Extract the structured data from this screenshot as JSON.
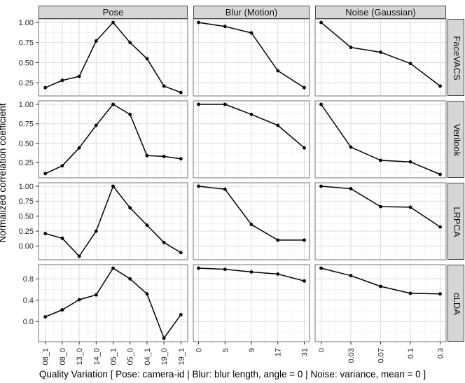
{
  "figure": {
    "y_axis_label": "Normalized correlation coefficient",
    "x_axis_label": "Quality Variation [ Pose: camera-id | Blur: blur length, angle = 0 | Noise: variance, mean = 0 ]"
  },
  "chart_data": {
    "type": "line",
    "grid": true,
    "legend": "none",
    "line_color": "#000000",
    "point_color": "#000000",
    "strip_bg": "#d6d6d6",
    "panel_bg": "#ffffff",
    "major_grid_color": "#dcdcdc",
    "minor_grid_color": "#efefef",
    "panel_border_color": "#8a8a8a",
    "facet_columns": [
      {
        "label": "Pose",
        "categories": [
          "08_1",
          "08_0",
          "13_0",
          "14_0",
          "05_1",
          "05_0",
          "04_1",
          "19_0",
          "19_1"
        ]
      },
      {
        "label": "Blur (Motion)",
        "categories": [
          "0",
          "5",
          "9",
          "17",
          "31"
        ]
      },
      {
        "label": "Noise (Gaussian)",
        "categories": [
          "0",
          "0.03",
          "0.07",
          "0.1",
          "0.3"
        ]
      }
    ],
    "facet_rows": [
      {
        "label": "FaceVACS",
        "ylim": [
          0.087,
          1.044
        ],
        "yticks": [
          {
            "v": 0.25,
            "label": "0.25"
          },
          {
            "v": 0.5,
            "label": "0.50"
          },
          {
            "v": 0.75,
            "label": "0.75"
          },
          {
            "v": 1.0,
            "label": "1.00"
          }
        ]
      },
      {
        "label": "Verilook",
        "ylim": [
          0.055,
          1.045
        ],
        "yticks": [
          {
            "v": 0.25,
            "label": "0.25"
          },
          {
            "v": 0.5,
            "label": "0.50"
          },
          {
            "v": 0.75,
            "label": "0.75"
          },
          {
            "v": 1.0,
            "label": "1.00"
          }
        ]
      },
      {
        "label": "LRPCA",
        "ylim": [
          -0.229,
          1.059
        ],
        "yticks": [
          {
            "v": 0.0,
            "label": "0.00"
          },
          {
            "v": 0.25,
            "label": "0.25"
          },
          {
            "v": 0.5,
            "label": "0.50"
          },
          {
            "v": 0.75,
            "label": "0.75"
          },
          {
            "v": 1.0,
            "label": "1.00"
          }
        ]
      },
      {
        "label": "cLDA",
        "ylim": [
          -0.376,
          1.066
        ],
        "yticks": [
          {
            "v": 0.0,
            "label": "0.0"
          },
          {
            "v": 0.4,
            "label": "0.4"
          },
          {
            "v": 0.8,
            "label": "0.8"
          }
        ]
      }
    ],
    "panels": [
      {
        "row": 0,
        "col": 0,
        "values": [
          0.19,
          0.28,
          0.33,
          0.77,
          1.0,
          0.75,
          0.55,
          0.21,
          0.13
        ]
      },
      {
        "row": 0,
        "col": 1,
        "values": [
          1.0,
          0.95,
          0.87,
          0.4,
          0.19
        ]
      },
      {
        "row": 0,
        "col": 2,
        "values": [
          1.0,
          0.69,
          0.63,
          0.49,
          0.21
        ]
      },
      {
        "row": 1,
        "col": 0,
        "values": [
          0.11,
          0.21,
          0.44,
          0.73,
          1.0,
          0.87,
          0.34,
          0.33,
          0.3
        ]
      },
      {
        "row": 1,
        "col": 1,
        "values": [
          1.0,
          1.0,
          0.87,
          0.73,
          0.44
        ]
      },
      {
        "row": 1,
        "col": 2,
        "values": [
          1.0,
          0.45,
          0.28,
          0.26,
          0.1
        ]
      },
      {
        "row": 2,
        "col": 0,
        "values": [
          0.21,
          0.13,
          -0.17,
          0.25,
          1.0,
          0.64,
          0.35,
          0.06,
          -0.11
        ]
      },
      {
        "row": 2,
        "col": 1,
        "values": [
          1.0,
          0.95,
          0.36,
          0.1,
          0.1
        ]
      },
      {
        "row": 2,
        "col": 2,
        "values": [
          1.0,
          0.96,
          0.66,
          0.65,
          0.32
        ]
      },
      {
        "row": 3,
        "col": 0,
        "values": [
          0.09,
          0.22,
          0.41,
          0.5,
          1.0,
          0.8,
          0.52,
          -0.31,
          0.13
        ]
      },
      {
        "row": 3,
        "col": 1,
        "values": [
          1.0,
          0.98,
          0.93,
          0.89,
          0.76
        ]
      },
      {
        "row": 3,
        "col": 2,
        "values": [
          1.0,
          0.86,
          0.66,
          0.53,
          0.52
        ]
      }
    ]
  }
}
